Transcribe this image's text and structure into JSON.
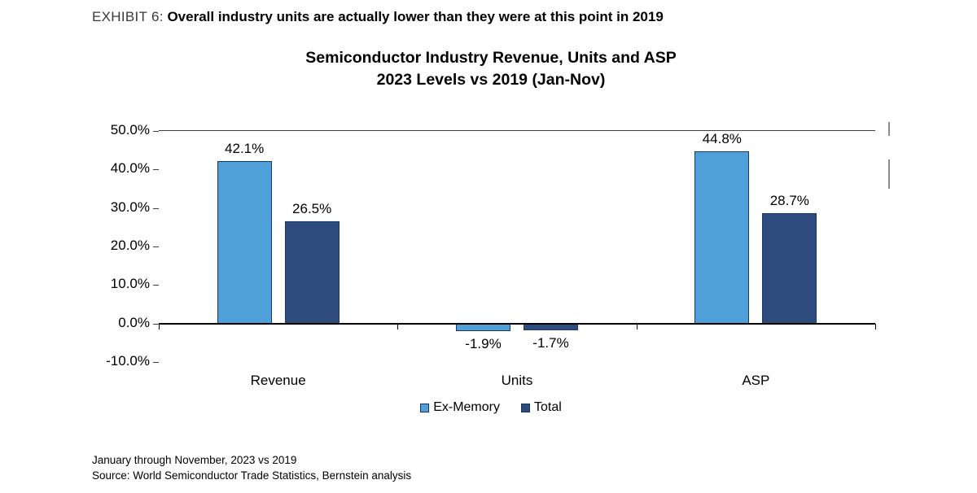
{
  "exhibit": {
    "label": "EXHIBIT 6:",
    "title": "Overall industry units are actually lower than they were at this point in 2019"
  },
  "chart_data": {
    "type": "bar",
    "title_line1": "Semiconductor Industry Revenue, Units and ASP",
    "title_line2": "2023 Levels vs 2019 (Jan-Nov)",
    "categories": [
      "Revenue",
      "Units",
      "ASP"
    ],
    "series": [
      {
        "name": "Ex-Memory",
        "color": "#4F9FD8",
        "values": [
          42.1,
          -1.9,
          44.8
        ]
      },
      {
        "name": "Total",
        "color": "#2D4B7C",
        "values": [
          26.5,
          -1.7,
          28.7
        ]
      }
    ],
    "value_labels": [
      [
        "42.1%",
        "-1.9%",
        "44.8%"
      ],
      [
        "26.5%",
        "-1.7%",
        "28.7%"
      ]
    ],
    "ylim": [
      -10,
      50
    ],
    "ytick_step": 10,
    "ytick_labels": [
      "50.0%",
      "40.0%",
      "30.0%",
      "20.0%",
      "10.0%",
      "0.0%",
      "-10.0%"
    ],
    "grid": false,
    "legend_position": "bottom"
  },
  "footnotes": {
    "line1": "January through November, 2023 vs 2019",
    "line2": "Source: World Semiconductor Trade Statistics, Bernstein analysis"
  }
}
